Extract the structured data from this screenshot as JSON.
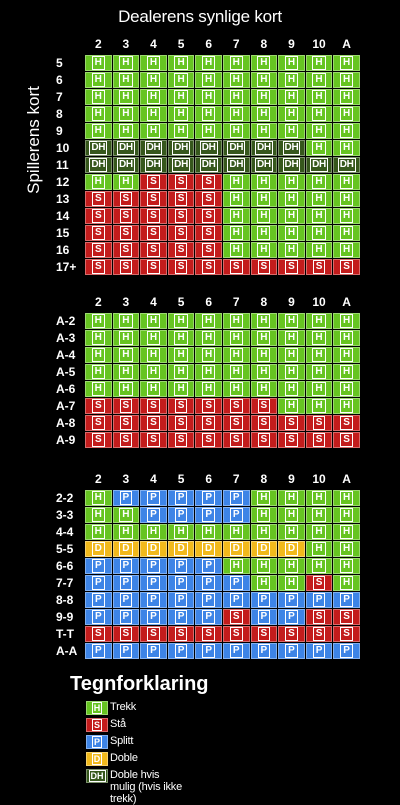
{
  "title": "Dealerens synlige kort",
  "side_label": "Spillerens kort",
  "columns": [
    "2",
    "3",
    "4",
    "5",
    "6",
    "7",
    "8",
    "9",
    "10",
    "A"
  ],
  "colors": {
    "H": "#66c421",
    "S": "#c31c1c",
    "P": "#3d84e6",
    "D": "#f1b91c",
    "DH": "#36571c"
  },
  "tables": [
    {
      "name": "hard-totals",
      "rows": [
        {
          "label": "5",
          "cells": [
            "H",
            "H",
            "H",
            "H",
            "H",
            "H",
            "H",
            "H",
            "H",
            "H"
          ]
        },
        {
          "label": "6",
          "cells": [
            "H",
            "H",
            "H",
            "H",
            "H",
            "H",
            "H",
            "H",
            "H",
            "H"
          ]
        },
        {
          "label": "7",
          "cells": [
            "H",
            "H",
            "H",
            "H",
            "H",
            "H",
            "H",
            "H",
            "H",
            "H"
          ]
        },
        {
          "label": "8",
          "cells": [
            "H",
            "H",
            "H",
            "H",
            "H",
            "H",
            "H",
            "H",
            "H",
            "H"
          ]
        },
        {
          "label": "9",
          "cells": [
            "H",
            "H",
            "H",
            "H",
            "H",
            "H",
            "H",
            "H",
            "H",
            "H"
          ]
        },
        {
          "label": "10",
          "cells": [
            "DH",
            "DH",
            "DH",
            "DH",
            "DH",
            "DH",
            "DH",
            "DH",
            "H",
            "H"
          ]
        },
        {
          "label": "11",
          "cells": [
            "DH",
            "DH",
            "DH",
            "DH",
            "DH",
            "DH",
            "DH",
            "DH",
            "DH",
            "DH"
          ]
        },
        {
          "label": "12",
          "cells": [
            "H",
            "H",
            "S",
            "S",
            "S",
            "H",
            "H",
            "H",
            "H",
            "H"
          ]
        },
        {
          "label": "13",
          "cells": [
            "S",
            "S",
            "S",
            "S",
            "S",
            "H",
            "H",
            "H",
            "H",
            "H"
          ]
        },
        {
          "label": "14",
          "cells": [
            "S",
            "S",
            "S",
            "S",
            "S",
            "H",
            "H",
            "H",
            "H",
            "H"
          ]
        },
        {
          "label": "15",
          "cells": [
            "S",
            "S",
            "S",
            "S",
            "S",
            "H",
            "H",
            "H",
            "H",
            "H"
          ]
        },
        {
          "label": "16",
          "cells": [
            "S",
            "S",
            "S",
            "S",
            "S",
            "H",
            "H",
            "H",
            "H",
            "H"
          ]
        },
        {
          "label": "17+",
          "cells": [
            "S",
            "S",
            "S",
            "S",
            "S",
            "S",
            "S",
            "S",
            "S",
            "S"
          ]
        }
      ]
    },
    {
      "name": "soft-totals",
      "rows": [
        {
          "label": "A-2",
          "cells": [
            "H",
            "H",
            "H",
            "H",
            "H",
            "H",
            "H",
            "H",
            "H",
            "H"
          ]
        },
        {
          "label": "A-3",
          "cells": [
            "H",
            "H",
            "H",
            "H",
            "H",
            "H",
            "H",
            "H",
            "H",
            "H"
          ]
        },
        {
          "label": "A-4",
          "cells": [
            "H",
            "H",
            "H",
            "H",
            "H",
            "H",
            "H",
            "H",
            "H",
            "H"
          ]
        },
        {
          "label": "A-5",
          "cells": [
            "H",
            "H",
            "H",
            "H",
            "H",
            "H",
            "H",
            "H",
            "H",
            "H"
          ]
        },
        {
          "label": "A-6",
          "cells": [
            "H",
            "H",
            "H",
            "H",
            "H",
            "H",
            "H",
            "H",
            "H",
            "H"
          ]
        },
        {
          "label": "A-7",
          "cells": [
            "S",
            "S",
            "S",
            "S",
            "S",
            "S",
            "S",
            "H",
            "H",
            "H"
          ]
        },
        {
          "label": "A-8",
          "cells": [
            "S",
            "S",
            "S",
            "S",
            "S",
            "S",
            "S",
            "S",
            "S",
            "S"
          ]
        },
        {
          "label": "A-9",
          "cells": [
            "S",
            "S",
            "S",
            "S",
            "S",
            "S",
            "S",
            "S",
            "S",
            "S"
          ]
        }
      ]
    },
    {
      "name": "pairs",
      "rows": [
        {
          "label": "2-2",
          "cells": [
            "H",
            "P",
            "P",
            "P",
            "P",
            "P",
            "H",
            "H",
            "H",
            "H"
          ]
        },
        {
          "label": "3-3",
          "cells": [
            "H",
            "H",
            "P",
            "P",
            "P",
            "P",
            "H",
            "H",
            "H",
            "H"
          ]
        },
        {
          "label": "4-4",
          "cells": [
            "H",
            "H",
            "H",
            "H",
            "H",
            "H",
            "H",
            "H",
            "H",
            "H"
          ]
        },
        {
          "label": "5-5",
          "cells": [
            "D",
            "D",
            "D",
            "D",
            "D",
            "D",
            "D",
            "D",
            "H",
            "H"
          ]
        },
        {
          "label": "6-6",
          "cells": [
            "P",
            "P",
            "P",
            "P",
            "P",
            "H",
            "H",
            "H",
            "H",
            "H"
          ]
        },
        {
          "label": "7-7",
          "cells": [
            "P",
            "P",
            "P",
            "P",
            "P",
            "P",
            "H",
            "H",
            "S",
            "H"
          ]
        },
        {
          "label": "8-8",
          "cells": [
            "P",
            "P",
            "P",
            "P",
            "P",
            "P",
            "P",
            "P",
            "P",
            "P"
          ]
        },
        {
          "label": "9-9",
          "cells": [
            "P",
            "P",
            "P",
            "P",
            "P",
            "S",
            "P",
            "P",
            "S",
            "S"
          ]
        },
        {
          "label": "T-T",
          "cells": [
            "S",
            "S",
            "S",
            "S",
            "S",
            "S",
            "S",
            "S",
            "S",
            "S"
          ]
        },
        {
          "label": "A-A",
          "cells": [
            "P",
            "P",
            "P",
            "P",
            "P",
            "P",
            "P",
            "P",
            "P",
            "P"
          ]
        }
      ]
    }
  ],
  "legend": {
    "title": "Tegnforklaring",
    "items": [
      {
        "code": "H",
        "label": "Trekk"
      },
      {
        "code": "S",
        "label": "Stå"
      },
      {
        "code": "P",
        "label": "Splitt"
      },
      {
        "code": "D",
        "label": "Doble"
      },
      {
        "code": "DH",
        "label": "Doble hvis mulig (hvis ikke trekk)"
      }
    ]
  }
}
